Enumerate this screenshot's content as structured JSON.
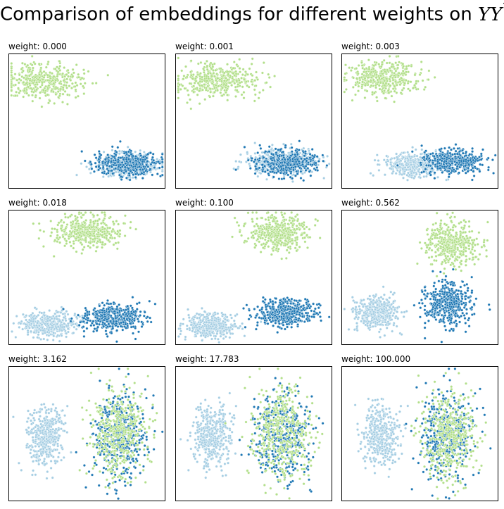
{
  "figure": {
    "title_text": "Comparison of embeddings for different weights on ",
    "title_math": "YY",
    "title_sup": "⊤"
  },
  "panel_label": "weight:",
  "colors": {
    "class_a": "#a6cee3",
    "class_b": "#1f78b4",
    "class_c": "#b2df8a",
    "marker_edge": "#ffffff"
  },
  "chart_data": [
    {
      "type": "scatter",
      "title": "weight: 0.000",
      "weight": "0.000",
      "xticks": [],
      "yticks": [],
      "grid": false,
      "series": [
        {
          "color": "#b2df8a",
          "center": [
            0.22,
            0.8
          ],
          "spread": [
            0.13,
            0.065
          ],
          "n": 420
        },
        {
          "color": "#a6cee3",
          "center": [
            0.76,
            0.18
          ],
          "spread": [
            0.1,
            0.045
          ],
          "n": 420
        },
        {
          "color": "#1f78b4",
          "center": [
            0.76,
            0.18
          ],
          "spread": [
            0.1,
            0.045
          ],
          "n": 420
        }
      ]
    },
    {
      "type": "scatter",
      "title": "weight: 0.001",
      "weight": "0.001",
      "xticks": [],
      "yticks": [],
      "grid": false,
      "series": [
        {
          "color": "#b2df8a",
          "center": [
            0.26,
            0.8
          ],
          "spread": [
            0.13,
            0.065
          ],
          "n": 420
        },
        {
          "color": "#a6cee3",
          "center": [
            0.67,
            0.19
          ],
          "spread": [
            0.11,
            0.045
          ],
          "n": 420
        },
        {
          "color": "#1f78b4",
          "center": [
            0.71,
            0.19
          ],
          "spread": [
            0.1,
            0.045
          ],
          "n": 420
        }
      ]
    },
    {
      "type": "scatter",
      "title": "weight: 0.003",
      "weight": "0.003",
      "xticks": [],
      "yticks": [],
      "grid": false,
      "series": [
        {
          "color": "#b2df8a",
          "center": [
            0.26,
            0.82
          ],
          "spread": [
            0.12,
            0.065
          ],
          "n": 420
        },
        {
          "color": "#a6cee3",
          "center": [
            0.47,
            0.17
          ],
          "spread": [
            0.09,
            0.045
          ],
          "n": 420
        },
        {
          "color": "#1f78b4",
          "center": [
            0.72,
            0.2
          ],
          "spread": [
            0.1,
            0.045
          ],
          "n": 420
        }
      ]
    },
    {
      "type": "scatter",
      "title": "weight: 0.018",
      "weight": "0.018",
      "xticks": [],
      "yticks": [],
      "grid": false,
      "series": [
        {
          "color": "#b2df8a",
          "center": [
            0.51,
            0.85
          ],
          "spread": [
            0.11,
            0.06
          ],
          "n": 420
        },
        {
          "color": "#a6cee3",
          "center": [
            0.25,
            0.15
          ],
          "spread": [
            0.09,
            0.045
          ],
          "n": 420
        },
        {
          "color": "#1f78b4",
          "center": [
            0.67,
            0.2
          ],
          "spread": [
            0.1,
            0.05
          ],
          "n": 420
        }
      ]
    },
    {
      "type": "scatter",
      "title": "weight: 0.100",
      "weight": "0.100",
      "xticks": [],
      "yticks": [],
      "grid": false,
      "series": [
        {
          "color": "#b2df8a",
          "center": [
            0.66,
            0.83
          ],
          "spread": [
            0.1,
            0.065
          ],
          "n": 420
        },
        {
          "color": "#a6cee3",
          "center": [
            0.22,
            0.14
          ],
          "spread": [
            0.08,
            0.045
          ],
          "n": 420
        },
        {
          "color": "#1f78b4",
          "center": [
            0.7,
            0.24
          ],
          "spread": [
            0.1,
            0.05
          ],
          "n": 420
        }
      ]
    },
    {
      "type": "scatter",
      "title": "weight: 0.562",
      "weight": "0.562",
      "xticks": [],
      "yticks": [],
      "grid": false,
      "series": [
        {
          "color": "#b2df8a",
          "center": [
            0.7,
            0.75
          ],
          "spread": [
            0.08,
            0.08
          ],
          "n": 420
        },
        {
          "color": "#a6cee3",
          "center": [
            0.23,
            0.24
          ],
          "spread": [
            0.07,
            0.06
          ],
          "n": 420
        },
        {
          "color": "#1f78b4",
          "center": [
            0.68,
            0.3
          ],
          "spread": [
            0.08,
            0.08
          ],
          "n": 420
        }
      ]
    },
    {
      "type": "scatter",
      "title": "weight: 3.162",
      "weight": "3.162",
      "xticks": [],
      "yticks": [],
      "grid": false,
      "series": [
        {
          "color": "#a6cee3",
          "center": [
            0.23,
            0.48
          ],
          "spread": [
            0.06,
            0.11
          ],
          "n": 420
        },
        {
          "color": "#1f78b4",
          "center": [
            0.7,
            0.49
          ],
          "spread": [
            0.09,
            0.17
          ],
          "n": 420
        },
        {
          "color": "#b2df8a",
          "center": [
            0.7,
            0.5
          ],
          "spread": [
            0.09,
            0.17
          ],
          "n": 420
        }
      ]
    },
    {
      "type": "scatter",
      "title": "weight: 17.783",
      "weight": "17.783",
      "xticks": [],
      "yticks": [],
      "grid": false,
      "series": [
        {
          "color": "#a6cee3",
          "center": [
            0.23,
            0.48
          ],
          "spread": [
            0.06,
            0.11
          ],
          "n": 420
        },
        {
          "color": "#1f78b4",
          "center": [
            0.68,
            0.49
          ],
          "spread": [
            0.09,
            0.17
          ],
          "n": 420
        },
        {
          "color": "#b2df8a",
          "center": [
            0.68,
            0.5
          ],
          "spread": [
            0.09,
            0.17
          ],
          "n": 420
        }
      ]
    },
    {
      "type": "scatter",
      "title": "weight: 100.000",
      "weight": "100.000",
      "xticks": [],
      "yticks": [],
      "grid": false,
      "series": [
        {
          "color": "#a6cee3",
          "center": [
            0.25,
            0.48
          ],
          "spread": [
            0.06,
            0.11
          ],
          "n": 420
        },
        {
          "color": "#1f78b4",
          "center": [
            0.68,
            0.49
          ],
          "spread": [
            0.09,
            0.17
          ],
          "n": 420
        },
        {
          "color": "#b2df8a",
          "center": [
            0.68,
            0.5
          ],
          "spread": [
            0.09,
            0.17
          ],
          "n": 420
        }
      ]
    }
  ]
}
